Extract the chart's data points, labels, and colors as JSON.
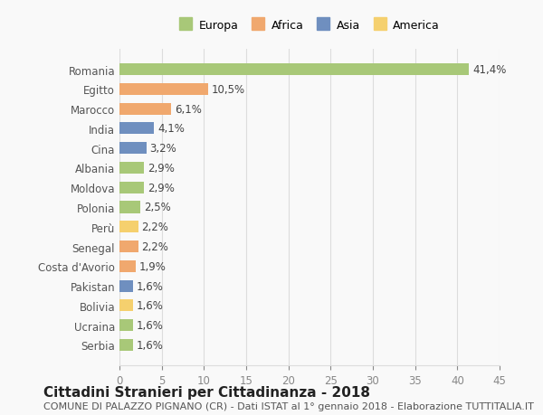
{
  "countries": [
    "Romania",
    "Egitto",
    "Marocco",
    "India",
    "Cina",
    "Albania",
    "Moldova",
    "Polonia",
    "Perù",
    "Senegal",
    "Costa d'Avorio",
    "Pakistan",
    "Bolivia",
    "Ucraina",
    "Serbia"
  ],
  "values": [
    41.4,
    10.5,
    6.1,
    4.1,
    3.2,
    2.9,
    2.9,
    2.5,
    2.2,
    2.2,
    1.9,
    1.6,
    1.6,
    1.6,
    1.6
  ],
  "labels": [
    "41,4%",
    "10,5%",
    "6,1%",
    "4,1%",
    "3,2%",
    "2,9%",
    "2,9%",
    "2,5%",
    "2,2%",
    "2,2%",
    "1,9%",
    "1,6%",
    "1,6%",
    "1,6%",
    "1,6%"
  ],
  "continents": [
    "Europa",
    "Africa",
    "Africa",
    "Asia",
    "Asia",
    "Europa",
    "Europa",
    "Europa",
    "America",
    "Africa",
    "Africa",
    "Asia",
    "America",
    "Europa",
    "Europa"
  ],
  "continent_colors": {
    "Europa": "#a8c878",
    "Africa": "#f0a86e",
    "Asia": "#6f8fbf",
    "America": "#f5d06e"
  },
  "legend_labels": [
    "Europa",
    "Africa",
    "Asia",
    "America"
  ],
  "title_main": "Cittadini Stranieri per Cittadinanza - 2018",
  "title_sub": "COMUNE DI PALAZZO PIGNANO (CR) - Dati ISTAT al 1° gennaio 2018 - Elaborazione TUTTITALIA.IT",
  "xlim": [
    0,
    45
  ],
  "xticks": [
    0,
    5,
    10,
    15,
    20,
    25,
    30,
    35,
    40,
    45
  ],
  "background_color": "#f9f9f9",
  "grid_color": "#dddddd",
  "bar_height": 0.6,
  "label_fontsize": 8.5,
  "tick_fontsize": 8.5,
  "title_main_fontsize": 11,
  "title_sub_fontsize": 8
}
